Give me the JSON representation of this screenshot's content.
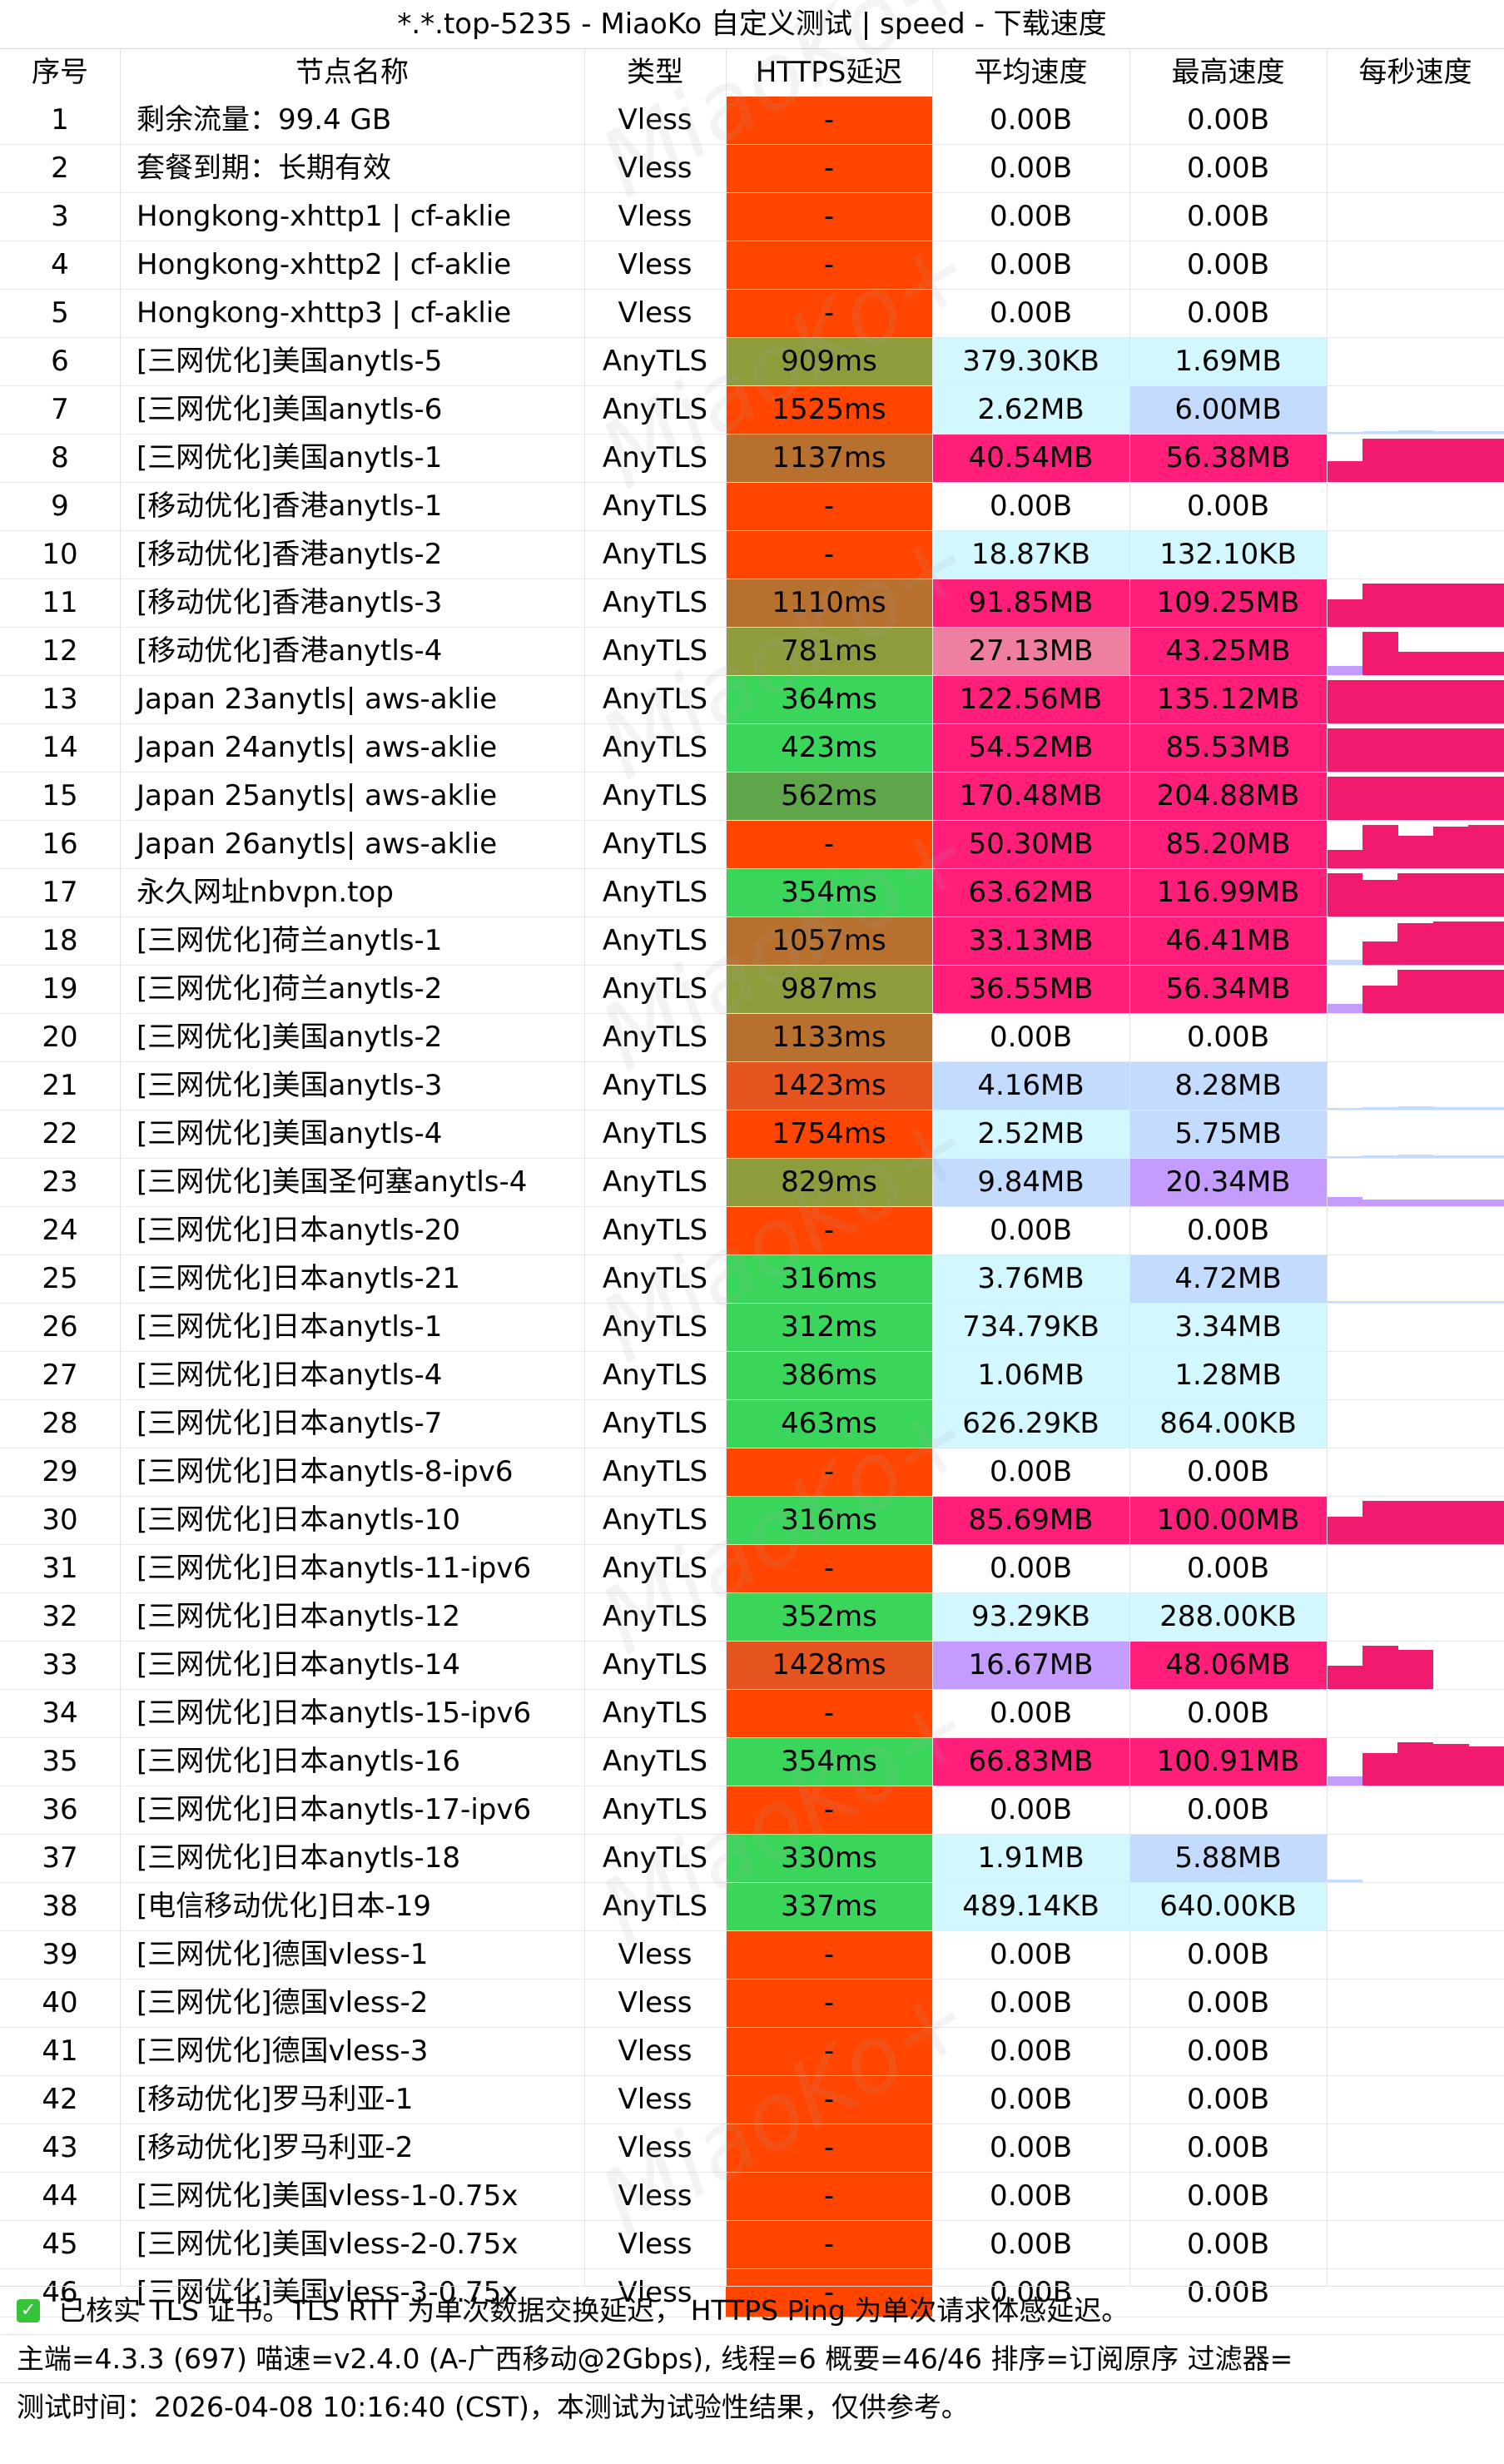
{
  "title": "*.*.top-5235 - MiaoKo 自定义测试 | speed - 下载速度",
  "watermark": "MiaoKo+",
  "check_icon": "check-icon",
  "headers": [
    "序号",
    "节点名称",
    "类型",
    "HTTPS延迟",
    "平均速度",
    "最高速度",
    "每秒速度"
  ],
  "colors": {
    "lat_fail": "#ff4500",
    "lat_green": "#3ad65b",
    "lat_olive": "#8f9c3c",
    "lat_brown": "#b8702e",
    "lat_orange_red": "#e6541f",
    "speed_light": "#d3f7ff",
    "speed_blue": "#c3dbff",
    "speed_purple": "#c49bff",
    "speed_pinklight": "#ee7f9f",
    "speed_pink": "#ff1f7a",
    "speed_hot": "#f01a6e"
  },
  "rows": [
    {
      "idx": "1",
      "name": "剩余流量：99.4 GB",
      "type": "Vless",
      "latency": "-",
      "avg": "0.00B",
      "max": "0.00B",
      "lat_color": "#ff4500",
      "avg_color": "",
      "max_color": "",
      "spark": []
    },
    {
      "idx": "2",
      "name": "套餐到期：长期有效",
      "type": "Vless",
      "latency": "-",
      "avg": "0.00B",
      "max": "0.00B",
      "lat_color": "#ff4500",
      "avg_color": "",
      "max_color": "",
      "spark": []
    },
    {
      "idx": "3",
      "name": "Hongkong-xhttp1 | cf-aklie",
      "type": "Vless",
      "latency": "-",
      "avg": "0.00B",
      "max": "0.00B",
      "lat_color": "#ff4500",
      "avg_color": "",
      "max_color": "",
      "spark": []
    },
    {
      "idx": "4",
      "name": "Hongkong-xhttp2  | cf-aklie",
      "type": "Vless",
      "latency": "-",
      "avg": "0.00B",
      "max": "0.00B",
      "lat_color": "#ff4500",
      "avg_color": "",
      "max_color": "",
      "spark": []
    },
    {
      "idx": "5",
      "name": "Hongkong-xhttp3  | cf-aklie",
      "type": "Vless",
      "latency": "-",
      "avg": "0.00B",
      "max": "0.00B",
      "lat_color": "#ff4500",
      "avg_color": "",
      "max_color": "",
      "spark": []
    },
    {
      "idx": "6",
      "name": "[三网优化]美国anytls-5",
      "type": "AnyTLS",
      "latency": "909ms",
      "avg": "379.30KB",
      "max": "1.69MB",
      "lat_color": "#8f9c3c",
      "avg_color": "#d3f7ff",
      "max_color": "#d3f7ff",
      "spark": []
    },
    {
      "idx": "7",
      "name": "[三网优化]美国anytls-6",
      "type": "AnyTLS",
      "latency": "1525ms",
      "avg": "2.62MB",
      "max": "6.00MB",
      "lat_color": "#ff4500",
      "avg_color": "#d3f7ff",
      "max_color": "#c3dbff",
      "spark": [
        0.03,
        0.06,
        0.07,
        0.05,
        0.05
      ]
    },
    {
      "idx": "8",
      "name": "[三网优化]美国anytls-1",
      "type": "AnyTLS",
      "latency": "1137ms",
      "avg": "40.54MB",
      "max": "56.38MB",
      "lat_color": "#b8702e",
      "avg_color": "#ff1f7a",
      "max_color": "#ff1f7a",
      "spark": [
        0.45,
        0.95,
        0.95,
        0.95,
        0.95
      ]
    },
    {
      "idx": "9",
      "name": "[移动优化]香港anytls-1",
      "type": "AnyTLS",
      "latency": "-",
      "avg": "0.00B",
      "max": "0.00B",
      "lat_color": "#ff4500",
      "avg_color": "",
      "max_color": "",
      "spark": []
    },
    {
      "idx": "10",
      "name": "[移动优化]香港anytls-2",
      "type": "AnyTLS",
      "latency": "-",
      "avg": "18.87KB",
      "max": "132.10KB",
      "lat_color": "#ff4500",
      "avg_color": "#d3f7ff",
      "max_color": "#d3f7ff",
      "spark": []
    },
    {
      "idx": "11",
      "name": "[移动优化]香港anytls-3",
      "type": "AnyTLS",
      "latency": "1110ms",
      "avg": "91.85MB",
      "max": "109.25MB",
      "lat_color": "#b8702e",
      "avg_color": "#ff1f7a",
      "max_color": "#ff1f7a",
      "spark": [
        0.6,
        0.95,
        0.95,
        0.95,
        0.95
      ]
    },
    {
      "idx": "12",
      "name": "[移动优化]香港anytls-4",
      "type": "AnyTLS",
      "latency": "781ms",
      "avg": "27.13MB",
      "max": "43.25MB",
      "lat_color": "#8f9c3c",
      "avg_color": "#ee7f9f",
      "max_color": "#ff1f7a",
      "spark": [
        0.2,
        0.95,
        0.5,
        0.5,
        0.5
      ]
    },
    {
      "idx": "13",
      "name": "Japan 23anytls| aws-aklie",
      "type": "AnyTLS",
      "latency": "364ms",
      "avg": "122.56MB",
      "max": "135.12MB",
      "lat_color": "#3ad65b",
      "avg_color": "#ff1f7a",
      "max_color": "#ff1f7a",
      "spark": [
        0.95,
        0.95,
        0.95,
        0.95,
        0.95
      ]
    },
    {
      "idx": "14",
      "name": "Japan 24anytls| aws-aklie",
      "type": "AnyTLS",
      "latency": "423ms",
      "avg": "54.52MB",
      "max": "85.53MB",
      "lat_color": "#3ad65b",
      "avg_color": "#ff1f7a",
      "max_color": "#ff1f7a",
      "spark": [
        0.95,
        0.95,
        0.95,
        0.95,
        0.95
      ]
    },
    {
      "idx": "15",
      "name": "Japan 25anytls| aws-aklie",
      "type": "AnyTLS",
      "latency": "562ms",
      "avg": "170.48MB",
      "max": "204.88MB",
      "lat_color": "#5fa64b",
      "avg_color": "#ff1f7a",
      "max_color": "#ff1f7a",
      "spark": [
        0.95,
        0.95,
        0.95,
        0.95,
        0.95
      ]
    },
    {
      "idx": "16",
      "name": "Japan 26anytls| aws-aklie",
      "type": "AnyTLS",
      "latency": "-",
      "avg": "50.30MB",
      "max": "85.20MB",
      "lat_color": "#ff4500",
      "avg_color": "#ff1f7a",
      "max_color": "#ff1f7a",
      "spark": [
        0.4,
        0.95,
        0.7,
        0.9,
        0.95
      ]
    },
    {
      "idx": "17",
      "name": "永久网址nbvpn.top",
      "type": "AnyTLS",
      "latency": "354ms",
      "avg": "63.62MB",
      "max": "116.99MB",
      "lat_color": "#3ad65b",
      "avg_color": "#ff1f7a",
      "max_color": "#ff1f7a",
      "spark": [
        0.95,
        0.8,
        0.95,
        0.95,
        0.95
      ]
    },
    {
      "idx": "18",
      "name": "[三网优化]荷兰anytls-1",
      "type": "AnyTLS",
      "latency": "1057ms",
      "avg": "33.13MB",
      "max": "46.41MB",
      "lat_color": "#b8702e",
      "avg_color": "#ff1f7a",
      "max_color": "#ff1f7a",
      "spark": [
        0.1,
        0.5,
        0.9,
        0.95,
        0.95
      ]
    },
    {
      "idx": "19",
      "name": "[三网优化]荷兰anytls-2",
      "type": "AnyTLS",
      "latency": "987ms",
      "avg": "36.55MB",
      "max": "56.34MB",
      "lat_color": "#8f9c3c",
      "avg_color": "#ff1f7a",
      "max_color": "#ff1f7a",
      "spark": [
        0.2,
        0.6,
        0.95,
        0.95,
        0.95
      ]
    },
    {
      "idx": "20",
      "name": "[三网优化]美国anytls-2",
      "type": "AnyTLS",
      "latency": "1133ms",
      "avg": "0.00B",
      "max": "0.00B",
      "lat_color": "#b8702e",
      "avg_color": "",
      "max_color": "",
      "spark": []
    },
    {
      "idx": "21",
      "name": "[三网优化]美国anytls-3",
      "type": "AnyTLS",
      "latency": "1423ms",
      "avg": "4.16MB",
      "max": "8.28MB",
      "lat_color": "#e6541f",
      "avg_color": "#c3dbff",
      "max_color": "#c3dbff",
      "spark": [
        0.03,
        0.06,
        0.07,
        0.05,
        0.05
      ]
    },
    {
      "idx": "22",
      "name": "[三网优化]美国anytls-4",
      "type": "AnyTLS",
      "latency": "1754ms",
      "avg": "2.52MB",
      "max": "5.75MB",
      "lat_color": "#ff4500",
      "avg_color": "#d3f7ff",
      "max_color": "#c3dbff",
      "spark": [
        0.03,
        0.06,
        0.07,
        0.05,
        0.05
      ]
    },
    {
      "idx": "23",
      "name": "[三网优化]美国圣何塞anytls-4",
      "type": "AnyTLS",
      "latency": "829ms",
      "avg": "9.84MB",
      "max": "20.34MB",
      "lat_color": "#8f9c3c",
      "avg_color": "#c3dbff",
      "max_color": "#c49bff",
      "spark": [
        0.2,
        0.15,
        0.15,
        0.15,
        0.15
      ]
    },
    {
      "idx": "24",
      "name": "[三网优化]日本anytls-20",
      "type": "AnyTLS",
      "latency": "-",
      "avg": "0.00B",
      "max": "0.00B",
      "lat_color": "#ff4500",
      "avg_color": "",
      "max_color": "",
      "spark": []
    },
    {
      "idx": "25",
      "name": "[三网优化]日本anytls-21",
      "type": "AnyTLS",
      "latency": "316ms",
      "avg": "3.76MB",
      "max": "4.72MB",
      "lat_color": "#3ad65b",
      "avg_color": "#d3f7ff",
      "max_color": "#c3dbff",
      "spark": [
        0.03,
        0.04,
        0.04,
        0.04,
        0.04
      ]
    },
    {
      "idx": "26",
      "name": "[三网优化]日本anytls-1",
      "type": "AnyTLS",
      "latency": "312ms",
      "avg": "734.79KB",
      "max": "3.34MB",
      "lat_color": "#3ad65b",
      "avg_color": "#d3f7ff",
      "max_color": "#d3f7ff",
      "spark": []
    },
    {
      "idx": "27",
      "name": "[三网优化]日本anytls-4",
      "type": "AnyTLS",
      "latency": "386ms",
      "avg": "1.06MB",
      "max": "1.28MB",
      "lat_color": "#3ad65b",
      "avg_color": "#d3f7ff",
      "max_color": "#d3f7ff",
      "spark": []
    },
    {
      "idx": "28",
      "name": "[三网优化]日本anytls-7",
      "type": "AnyTLS",
      "latency": "463ms",
      "avg": "626.29KB",
      "max": "864.00KB",
      "lat_color": "#3ad65b",
      "avg_color": "#d3f7ff",
      "max_color": "#d3f7ff",
      "spark": []
    },
    {
      "idx": "29",
      "name": "[三网优化]日本anytls-8-ipv6",
      "type": "AnyTLS",
      "latency": "-",
      "avg": "0.00B",
      "max": "0.00B",
      "lat_color": "#ff4500",
      "avg_color": "",
      "max_color": "",
      "spark": []
    },
    {
      "idx": "30",
      "name": "[三网优化]日本anytls-10",
      "type": "AnyTLS",
      "latency": "316ms",
      "avg": "85.69MB",
      "max": "100.00MB",
      "lat_color": "#3ad65b",
      "avg_color": "#ff1f7a",
      "max_color": "#ff1f7a",
      "spark": [
        0.6,
        0.95,
        0.95,
        0.95,
        0.95
      ]
    },
    {
      "idx": "31",
      "name": "[三网优化]日本anytls-11-ipv6",
      "type": "AnyTLS",
      "latency": "-",
      "avg": "0.00B",
      "max": "0.00B",
      "lat_color": "#ff4500",
      "avg_color": "",
      "max_color": "",
      "spark": []
    },
    {
      "idx": "32",
      "name": "[三网优化]日本anytls-12",
      "type": "AnyTLS",
      "latency": "352ms",
      "avg": "93.29KB",
      "max": "288.00KB",
      "lat_color": "#3ad65b",
      "avg_color": "#d3f7ff",
      "max_color": "#d3f7ff",
      "spark": []
    },
    {
      "idx": "33",
      "name": "[三网优化]日本anytls-14",
      "type": "AnyTLS",
      "latency": "1428ms",
      "avg": "16.67MB",
      "max": "48.06MB",
      "lat_color": "#e6541f",
      "avg_color": "#c49bff",
      "max_color": "#ff1f7a",
      "spark": [
        0.5,
        0.95,
        0.85,
        0.0,
        0.0
      ]
    },
    {
      "idx": "34",
      "name": "[三网优化]日本anytls-15-ipv6",
      "type": "AnyTLS",
      "latency": "-",
      "avg": "0.00B",
      "max": "0.00B",
      "lat_color": "#ff4500",
      "avg_color": "",
      "max_color": "",
      "spark": []
    },
    {
      "idx": "35",
      "name": "[三网优化]日本anytls-16",
      "type": "AnyTLS",
      "latency": "354ms",
      "avg": "66.83MB",
      "max": "100.91MB",
      "lat_color": "#3ad65b",
      "avg_color": "#ff1f7a",
      "max_color": "#ff1f7a",
      "spark": [
        0.2,
        0.7,
        0.95,
        0.9,
        0.85
      ]
    },
    {
      "idx": "36",
      "name": "[三网优化]日本anytls-17-ipv6",
      "type": "AnyTLS",
      "latency": "-",
      "avg": "0.00B",
      "max": "0.00B",
      "lat_color": "#ff4500",
      "avg_color": "",
      "max_color": "",
      "spark": []
    },
    {
      "idx": "37",
      "name": "[三网优化]日本anytls-18",
      "type": "AnyTLS",
      "latency": "330ms",
      "avg": "1.91MB",
      "max": "5.88MB",
      "lat_color": "#3ad65b",
      "avg_color": "#d3f7ff",
      "max_color": "#c3dbff",
      "spark": [
        0.06,
        0.0,
        0.0,
        0.0,
        0.0
      ]
    },
    {
      "idx": "38",
      "name": "[电信移动优化]日本-19",
      "type": "AnyTLS",
      "latency": "337ms",
      "avg": "489.14KB",
      "max": "640.00KB",
      "lat_color": "#3ad65b",
      "avg_color": "#d3f7ff",
      "max_color": "#d3f7ff",
      "spark": []
    },
    {
      "idx": "39",
      "name": "[三网优化]德国vless-1",
      "type": "Vless",
      "latency": "-",
      "avg": "0.00B",
      "max": "0.00B",
      "lat_color": "#ff4500",
      "avg_color": "",
      "max_color": "",
      "spark": []
    },
    {
      "idx": "40",
      "name": "[三网优化]德国vless-2",
      "type": "Vless",
      "latency": "-",
      "avg": "0.00B",
      "max": "0.00B",
      "lat_color": "#ff4500",
      "avg_color": "",
      "max_color": "",
      "spark": []
    },
    {
      "idx": "41",
      "name": "[三网优化]德国vless-3",
      "type": "Vless",
      "latency": "-",
      "avg": "0.00B",
      "max": "0.00B",
      "lat_color": "#ff4500",
      "avg_color": "",
      "max_color": "",
      "spark": []
    },
    {
      "idx": "42",
      "name": "[移动优化]罗马利亚-1",
      "type": "Vless",
      "latency": "-",
      "avg": "0.00B",
      "max": "0.00B",
      "lat_color": "#ff4500",
      "avg_color": "",
      "max_color": "",
      "spark": []
    },
    {
      "idx": "43",
      "name": "[移动优化]罗马利亚-2",
      "type": "Vless",
      "latency": "-",
      "avg": "0.00B",
      "max": "0.00B",
      "lat_color": "#ff4500",
      "avg_color": "",
      "max_color": "",
      "spark": []
    },
    {
      "idx": "44",
      "name": "[三网优化]美国vless-1-0.75x",
      "type": "Vless",
      "latency": "-",
      "avg": "0.00B",
      "max": "0.00B",
      "lat_color": "#ff4500",
      "avg_color": "",
      "max_color": "",
      "spark": []
    },
    {
      "idx": "45",
      "name": "[三网优化]美国vless-2-0.75x",
      "type": "Vless",
      "latency": "-",
      "avg": "0.00B",
      "max": "0.00B",
      "lat_color": "#ff4500",
      "avg_color": "",
      "max_color": "",
      "spark": []
    },
    {
      "idx": "46",
      "name": "[三网优化]美国vless-3-0.75x",
      "type": "Vless",
      "latency": "-",
      "avg": "0.00B",
      "max": "0.00B",
      "lat_color": "#ff4500",
      "avg_color": "",
      "max_color": "",
      "spark": []
    }
  ],
  "footer": {
    "tls_note": "已核实 TLS 证书。TLS RTT 为单次数据交换延迟， HTTPS Ping 为单次请求体感延迟。",
    "main_info": "主端=4.3.3 (697) 喵速=v2.4.0 (A-广西移动@2Gbps), 线程=6 概要=46/46 排序=订阅原序 过滤器=",
    "test_time": "测试时间：2026-04-08 10:16:40 (CST)，本测试为试验性结果，仅供参考。"
  }
}
